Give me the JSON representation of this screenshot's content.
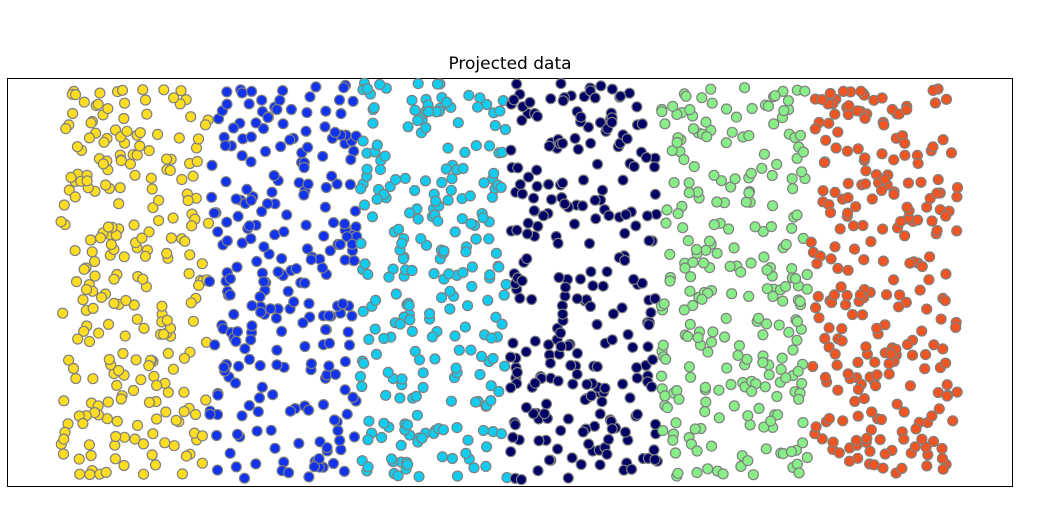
{
  "chart_data": {
    "type": "scatter",
    "title": "Projected data",
    "xlabel": "",
    "ylabel": "",
    "xlim": [
      -1.9,
      1.9
    ],
    "ylim": [
      -1.0,
      1.0
    ],
    "axes_visible": false,
    "grid": false,
    "marker": {
      "edge_color": "#808080"
    },
    "series": [
      {
        "color": "#ffdd22",
        "x_range": [
          -1.7,
          -1.14
        ],
        "y_range": [
          -0.95,
          0.97
        ],
        "count": 260
      },
      {
        "color": "#1133ee",
        "x_range": [
          -1.14,
          -0.58
        ],
        "y_range": [
          -0.97,
          0.97
        ],
        "count": 260
      },
      {
        "color": "#11ccee",
        "x_range": [
          -0.57,
          -0.01
        ],
        "y_range": [
          -0.96,
          0.98
        ],
        "count": 260
      },
      {
        "color": "#000066",
        "x_range": [
          0.0,
          0.56
        ],
        "y_range": [
          -0.97,
          0.98
        ],
        "count": 260
      },
      {
        "color": "#88ee88",
        "x_range": [
          0.57,
          1.13
        ],
        "y_range": [
          -0.96,
          0.97
        ],
        "count": 260
      },
      {
        "color": "#ee5522",
        "x_range": [
          1.14,
          1.7
        ],
        "y_range": [
          -0.95,
          0.96
        ],
        "count": 260
      }
    ]
  }
}
